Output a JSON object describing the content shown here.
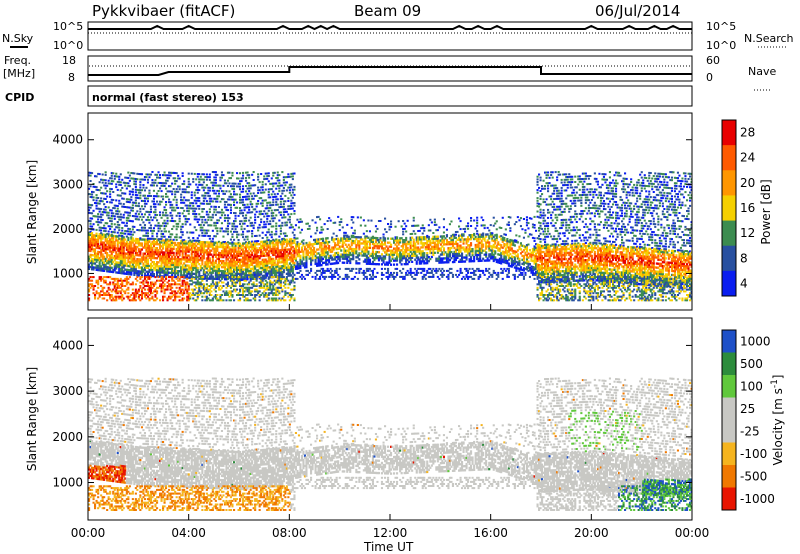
{
  "header": {
    "station": "Pykkvibaer (fitACF)",
    "beam": "Beam 09",
    "date": "06/Jul/2014"
  },
  "strip_nsky": {
    "left_label": "N.Sky",
    "left_ticks": [
      "10^5",
      "10^0"
    ],
    "right_label": "N.Search",
    "right_ticks": [
      "10^5",
      "10^0"
    ]
  },
  "strip_freq": {
    "left_label_1": "Freq.",
    "left_label_2": "[MHz]",
    "left_ticks": [
      "18",
      "8"
    ],
    "right_label": "Nave",
    "right_ticks": [
      "60",
      "0"
    ]
  },
  "cpid": {
    "label": "CPID",
    "text": "normal (fast stereo) 153"
  },
  "chart_data": [
    {
      "type": "heatmap",
      "ylabel": "Slant Range [km]",
      "yticks": [
        1000,
        2000,
        3000,
        4000
      ],
      "ylim": [
        180,
        4600
      ],
      "xlim": [
        0,
        24
      ],
      "colorbar": {
        "label": "Power [dB]",
        "ticks": [
          "28",
          "24",
          "20",
          "16",
          "12",
          "8",
          "4"
        ],
        "colors": [
          "#e80000",
          "#ff5a00",
          "#ff9600",
          "#f5d000",
          "#3c8c50",
          "#2850a0",
          "#0a1ef0"
        ]
      },
      "main_band": [
        {
          "t": 0.0,
          "range_km": 1650
        },
        {
          "t": 2.0,
          "range_km": 1500
        },
        {
          "t": 4.0,
          "range_km": 1450
        },
        {
          "t": 6.0,
          "range_km": 1400
        },
        {
          "t": 8.0,
          "range_km": 1500
        },
        {
          "t": 10.0,
          "range_km": 1650
        },
        {
          "t": 12.0,
          "range_km": 1600
        },
        {
          "t": 14.0,
          "range_km": 1650
        },
        {
          "t": 16.0,
          "range_km": 1700
        },
        {
          "t": 18.0,
          "range_km": 1350
        },
        {
          "t": 20.0,
          "range_km": 1400
        },
        {
          "t": 22.0,
          "range_km": 1300
        },
        {
          "t": 24.0,
          "range_km": 1200
        }
      ]
    },
    {
      "type": "heatmap",
      "ylabel": "Slant Range [km]",
      "xlabel": "Time UT",
      "yticks": [
        1000,
        2000,
        3000,
        4000
      ],
      "ylim": [
        180,
        4600
      ],
      "xlim": [
        0,
        24
      ],
      "xticks": [
        "00:00",
        "04:00",
        "08:00",
        "12:00",
        "16:00",
        "20:00",
        "00:00"
      ],
      "colorbar": {
        "label": "Velocity [m s^-1]",
        "ticks": [
          "1000",
          "500",
          "100",
          "25",
          "-25",
          "-100",
          "-500",
          "-1000"
        ],
        "colors": [
          "#1e50c8",
          "#2c8c3c",
          "#60c83c",
          "#c8c8c4",
          "#c8c8c4",
          "#f5b41e",
          "#f07800",
          "#e81400"
        ]
      }
    }
  ]
}
